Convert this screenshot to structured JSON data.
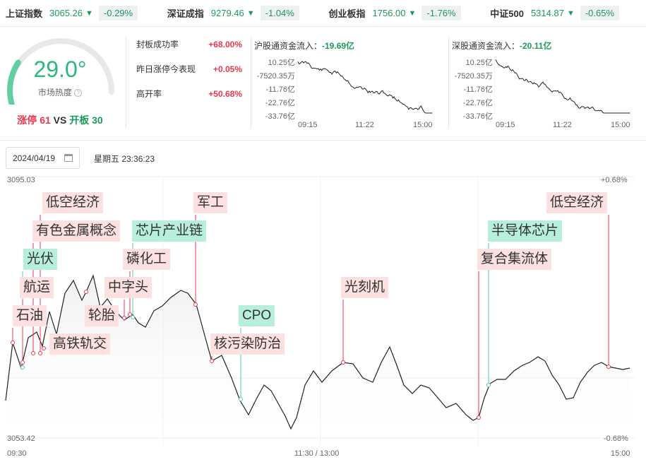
{
  "indices": [
    {
      "name": "上证指数",
      "value": "3065.26",
      "arrow": "▼",
      "change": "-0.29%"
    },
    {
      "name": "深证成指",
      "value": "9279.46",
      "arrow": "▼",
      "change": "-1.04%"
    },
    {
      "name": "创业板指",
      "value": "1756.00",
      "arrow": "▼",
      "change": "-1.76%"
    },
    {
      "name": "中证500",
      "value": "5314.87",
      "arrow": "▼",
      "change": "-0.65%"
    }
  ],
  "heat": {
    "value": "29.0°",
    "label": "市场热度",
    "level": 0.29,
    "limit_up_label": "涨停",
    "limit_up": "61",
    "vs": "VS",
    "open_label": "开板",
    "open": "30"
  },
  "stats": [
    {
      "label": "封板成功率",
      "value": "+68.00%"
    },
    {
      "label": "昨日涨停今表现",
      "value": "+0.05%"
    },
    {
      "label": "高开率",
      "value": "+50.68%"
    }
  ],
  "flows": [
    {
      "title": "沪股通资金流入：",
      "value": "-19.69亿",
      "yticks": [
        "10.25亿",
        "-7520.35万",
        "-11.76亿",
        "-22.76亿",
        "-33.76亿"
      ],
      "xticks": [
        "09:15",
        "11:22",
        "15:00"
      ]
    },
    {
      "title": "深股通资金流入：",
      "value": "-20.11亿",
      "yticks": [
        "10.25亿",
        "-7520.35万",
        "-11.76亿",
        "-22.76亿",
        "-33.76亿"
      ],
      "xticks": [
        "09:15",
        "11:22",
        "15:00"
      ]
    }
  ],
  "date": "2024/04/19",
  "weekday_time": "星期五 23:36:23",
  "main_chart": {
    "y_top": "3095.03",
    "y_bottom": "3053.42",
    "pct_top": "+0.68%",
    "pct_bottom": "-0.68%",
    "x_start": "09:30",
    "x_mid": "11:30 / 13:00",
    "x_end": "15:00"
  },
  "tags": [
    {
      "text": "低空经济",
      "color": "r"
    },
    {
      "text": "有色金属概念",
      "color": "r"
    },
    {
      "text": "光伏",
      "color": "g"
    },
    {
      "text": "航运",
      "color": "r"
    },
    {
      "text": "石油",
      "color": "r"
    },
    {
      "text": "高铁轨交",
      "color": "r"
    },
    {
      "text": "轮胎",
      "color": "r"
    },
    {
      "text": "中字头",
      "color": "r"
    },
    {
      "text": "磷化工",
      "color": "r"
    },
    {
      "text": "芯片产业链",
      "color": "g"
    },
    {
      "text": "军工",
      "color": "r"
    },
    {
      "text": "CPO",
      "color": "g"
    },
    {
      "text": "核污染防治",
      "color": "r"
    },
    {
      "text": "光刻机",
      "color": "r"
    },
    {
      "text": "复合集流体",
      "color": "r"
    },
    {
      "text": "半导体芯片",
      "color": "g"
    },
    {
      "text": "低空经济",
      "color": "r"
    }
  ]
}
